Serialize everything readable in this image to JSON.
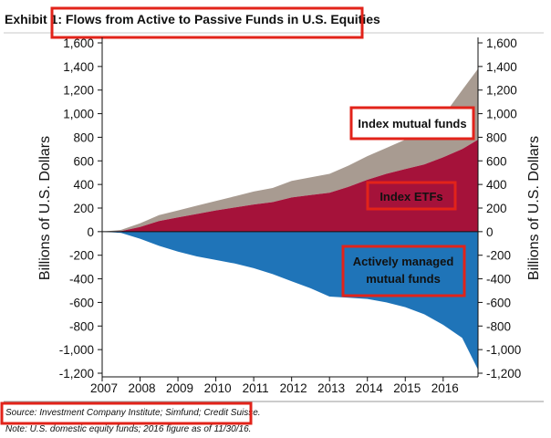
{
  "chart_data": {
    "type": "area",
    "title": "Exhibit 1: Flows from Active to Passive Funds in U.S. Equities",
    "ylabel_left": "Billions of U.S. Dollars",
    "ylabel_right": "Billions of U.S. Dollars",
    "xlabel": "",
    "x_ticks": [
      "2007",
      "2008",
      "2009",
      "2010",
      "2011",
      "2012",
      "2013",
      "2014",
      "2015",
      "2016"
    ],
    "y_ticks": [
      "1,600",
      "1,400",
      "1,200",
      "1,000",
      "800",
      "600",
      "400",
      "200",
      "0",
      "-200",
      "-400",
      "-600",
      "-800",
      "-1,000",
      "-1,200"
    ],
    "ylim": [
      -1200,
      1600
    ],
    "xlim": [
      2007.0,
      2016.92
    ],
    "grid": false,
    "annotations": {
      "index_mutual_funds": "Index mutual funds",
      "index_etfs": "Index ETFs",
      "actively_managed": [
        "Actively managed",
        "mutual funds"
      ]
    },
    "colors": {
      "index_mutual_funds": "#a89b91",
      "index_etfs": "#a5123a",
      "actively_managed": "#1f74b8",
      "highlight_box": "#e2231a"
    },
    "series": [
      {
        "name": "Index ETFs",
        "x": [
          2007.0,
          2007.5,
          2008.0,
          2008.5,
          2009.0,
          2009.5,
          2010.0,
          2010.5,
          2011.0,
          2011.5,
          2012.0,
          2012.5,
          2013.0,
          2013.5,
          2014.0,
          2014.5,
          2015.0,
          2015.5,
          2016.0,
          2016.5,
          2016.92
        ],
        "values": [
          0,
          5,
          40,
          90,
          120,
          150,
          180,
          205,
          230,
          250,
          290,
          310,
          330,
          380,
          440,
          490,
          530,
          570,
          630,
          700,
          780
        ]
      },
      {
        "name": "Index mutual funds",
        "x": [
          2007.0,
          2007.5,
          2008.0,
          2008.5,
          2009.0,
          2009.5,
          2010.0,
          2010.5,
          2011.0,
          2011.5,
          2012.0,
          2012.5,
          2013.0,
          2013.5,
          2014.0,
          2014.5,
          2015.0,
          2015.5,
          2016.0,
          2016.5,
          2016.92
        ],
        "values": [
          0,
          10,
          30,
          50,
          60,
          70,
          80,
          95,
          110,
          120,
          140,
          150,
          160,
          180,
          200,
          220,
          250,
          300,
          350,
          500,
          600
        ]
      },
      {
        "name": "Actively managed mutual funds",
        "x": [
          2007.0,
          2007.5,
          2008.0,
          2008.5,
          2009.0,
          2009.5,
          2010.0,
          2010.5,
          2011.0,
          2011.5,
          2012.0,
          2012.5,
          2013.0,
          2013.5,
          2014.0,
          2014.5,
          2015.0,
          2015.5,
          2016.0,
          2016.5,
          2016.92
        ],
        "values": [
          0,
          -10,
          -60,
          -120,
          -170,
          -210,
          -240,
          -270,
          -310,
          -360,
          -420,
          -480,
          -550,
          -560,
          -570,
          -600,
          -640,
          -700,
          -790,
          -900,
          -1170
        ]
      }
    ]
  },
  "source": "Source: Investment Company Institute; Simfund; Credit Suisse.",
  "note": "Note: U.S. domestic equity funds; 2016 figure as of 11/30/16."
}
